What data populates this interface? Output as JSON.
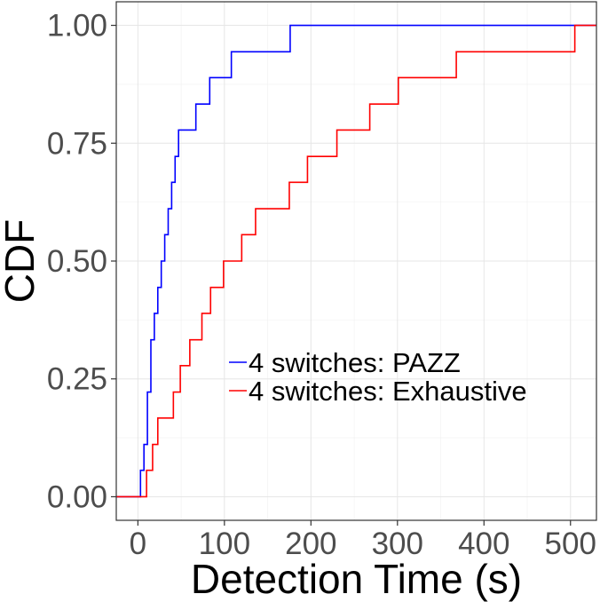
{
  "chart_data": {
    "type": "line",
    "step": true,
    "xlabel": "Detection Time (s)",
    "ylabel": "CDF",
    "xlim": [
      -25,
      530
    ],
    "ylim": [
      -0.05,
      1.05
    ],
    "x_ticks": [
      0,
      100,
      200,
      300,
      400,
      500
    ],
    "y_ticks": [
      0.0,
      0.25,
      0.5,
      0.75,
      1.0
    ],
    "x_tick_labels": [
      "0",
      "100",
      "200",
      "300",
      "400",
      "500"
    ],
    "y_tick_labels": [
      "0.00",
      "0.25",
      "0.50",
      "0.75",
      "1.00"
    ],
    "grid": true,
    "legend_position": "bottom-right",
    "series": [
      {
        "name": "4 switches: PAZZ",
        "color": "#0000ff",
        "x": [
          -25,
          3,
          7,
          11,
          15,
          19,
          23,
          27,
          31,
          35,
          39,
          43,
          47,
          55,
          67,
          83,
          108,
          176,
          530
        ],
        "y": [
          0,
          0.056,
          0.111,
          0.222,
          0.333,
          0.389,
          0.444,
          0.5,
          0.556,
          0.611,
          0.667,
          0.722,
          0.778,
          0.778,
          0.833,
          0.889,
          0.944,
          1.0,
          1.0
        ]
      },
      {
        "name": "4 switches: Exhaustive",
        "color": "#ff0000",
        "x": [
          -25,
          10,
          17,
          23,
          41,
          49,
          60,
          74,
          84,
          99,
          120,
          136,
          175,
          196,
          230,
          268,
          301,
          368,
          505,
          530
        ],
        "y": [
          0,
          0.056,
          0.111,
          0.167,
          0.222,
          0.278,
          0.333,
          0.389,
          0.444,
          0.5,
          0.556,
          0.611,
          0.667,
          0.722,
          0.778,
          0.833,
          0.889,
          0.944,
          1.0,
          1.0
        ]
      }
    ]
  }
}
